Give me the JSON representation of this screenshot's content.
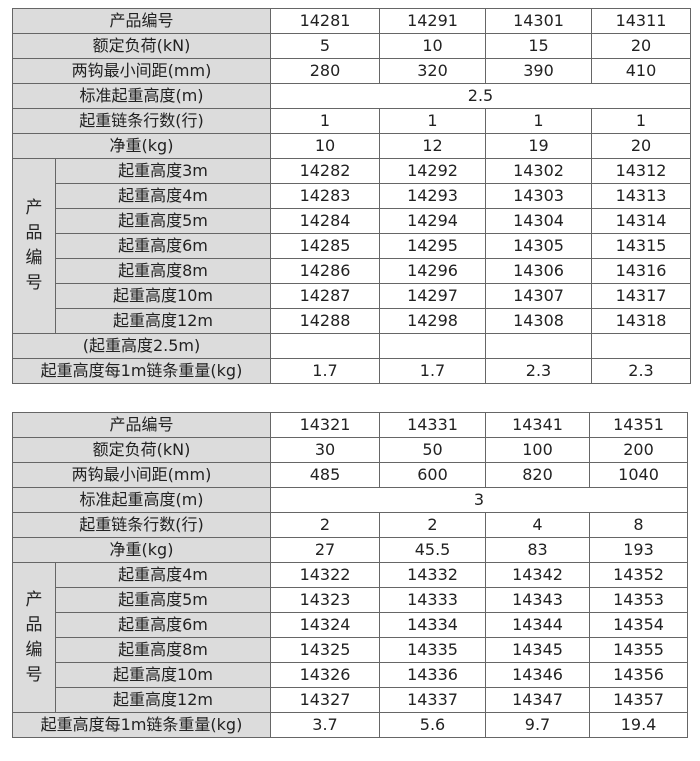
{
  "tables": [
    {
      "header_label": "产品编号",
      "models": [
        "14281",
        "14291",
        "14301",
        "14311"
      ],
      "spec_rows": [
        {
          "label": "额定负荷(kN)",
          "values": [
            "5",
            "10",
            "15",
            "20"
          ]
        },
        {
          "label": "两钩最小间距(mm)",
          "values": [
            "280",
            "320",
            "390",
            "410"
          ]
        },
        {
          "label": "标准起重高度(m)",
          "merged": "2.5"
        },
        {
          "label": "起重链条行数(行)",
          "values": [
            "1",
            "1",
            "1",
            "1"
          ]
        },
        {
          "label": "净重(kg)",
          "values": [
            "10",
            "12",
            "19",
            "20"
          ]
        }
      ],
      "group_label": [
        "产",
        "品",
        "编",
        "号"
      ],
      "group_rows": [
        {
          "label": "起重高度3m",
          "values": [
            "14282",
            "14292",
            "14302",
            "14312"
          ]
        },
        {
          "label": "起重高度4m",
          "values": [
            "14283",
            "14293",
            "14303",
            "14313"
          ]
        },
        {
          "label": "起重高度5m",
          "values": [
            "14284",
            "14294",
            "14304",
            "14314"
          ]
        },
        {
          "label": "起重高度6m",
          "values": [
            "14285",
            "14295",
            "14305",
            "14315"
          ]
        },
        {
          "label": "起重高度8m",
          "values": [
            "14286",
            "14296",
            "14306",
            "14316"
          ]
        },
        {
          "label": "起重高度10m",
          "values": [
            "14287",
            "14297",
            "14307",
            "14317"
          ]
        },
        {
          "label": "起重高度12m",
          "values": [
            "14288",
            "14298",
            "14308",
            "14318"
          ]
        }
      ],
      "footer_rows": [
        {
          "label": "(起重高度2.5m)",
          "values": [
            "",
            "",
            "",
            ""
          ]
        },
        {
          "label": "起重高度每1m链条重量(kg)",
          "values": [
            "1.7",
            "1.7",
            "2.3",
            "2.3"
          ]
        }
      ]
    },
    {
      "header_label": "产品编号",
      "models": [
        "14321",
        "14331",
        "14341",
        "14351"
      ],
      "spec_rows": [
        {
          "label": "额定负荷(kN)",
          "values": [
            "30",
            "50",
            "100",
            "200"
          ]
        },
        {
          "label": "两钩最小间距(mm)",
          "values": [
            "485",
            "600",
            "820",
            "1040"
          ]
        },
        {
          "label": "标准起重高度(m)",
          "merged": "3"
        },
        {
          "label": "起重链条行数(行)",
          "values": [
            "2",
            "2",
            "4",
            "8"
          ]
        },
        {
          "label": "净重(kg)",
          "values": [
            "27",
            "45.5",
            "83",
            "193"
          ]
        }
      ],
      "group_label": [
        "产",
        "品",
        "编",
        "号"
      ],
      "group_rows": [
        {
          "label": "起重高度4m",
          "values": [
            "14322",
            "14332",
            "14342",
            "14352"
          ]
        },
        {
          "label": "起重高度5m",
          "values": [
            "14323",
            "14333",
            "14343",
            "14353"
          ]
        },
        {
          "label": "起重高度6m",
          "values": [
            "14324",
            "14334",
            "14344",
            "14354"
          ]
        },
        {
          "label": "起重高度8m",
          "values": [
            "14325",
            "14335",
            "14345",
            "14355"
          ]
        },
        {
          "label": "起重高度10m",
          "values": [
            "14326",
            "14336",
            "14346",
            "14356"
          ]
        },
        {
          "label": "起重高度12m",
          "values": [
            "14327",
            "14337",
            "14347",
            "14357"
          ]
        }
      ],
      "footer_rows": [
        {
          "label": "起重高度每1m链条重量(kg)",
          "values": [
            "3.7",
            "5.6",
            "9.7",
            "19.4"
          ]
        }
      ]
    }
  ]
}
